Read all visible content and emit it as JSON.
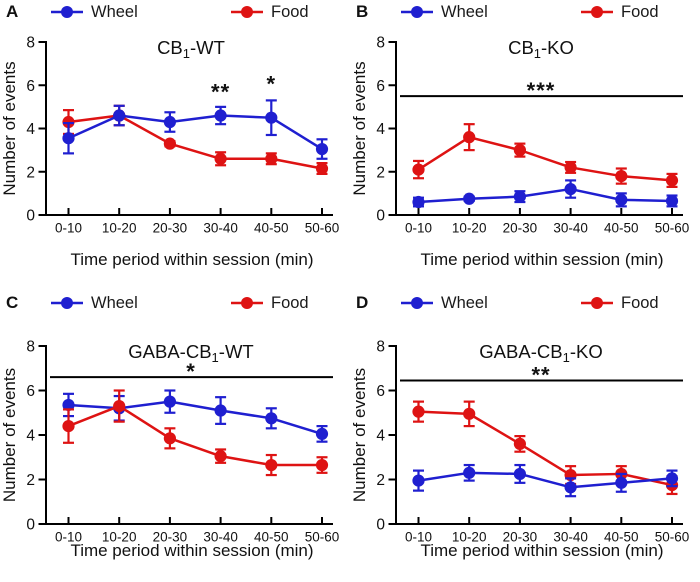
{
  "figure": {
    "background": "#ffffff",
    "wheel_color": "#1f1fd0",
    "food_color": "#de1313",
    "axis_color": "#000000",
    "text_color": "#111111"
  },
  "chart_data": [
    {
      "letter": "A",
      "type": "line",
      "title_pre": "CB",
      "title_sub": "1",
      "title_post": "-WT",
      "xlabel": "Time period within session (min)",
      "ylabel": "Number of events",
      "categories": [
        "0-10",
        "10-20",
        "20-30",
        "30-40",
        "40-50",
        "50-60"
      ],
      "ylim": [
        0,
        8
      ],
      "yticks": [
        0,
        2,
        4,
        6,
        8
      ],
      "legend_position": "top",
      "grid": false,
      "series": [
        {
          "name": "Wheel",
          "color": "#1f1fd0",
          "values": [
            3.55,
            4.6,
            4.3,
            4.6,
            4.5,
            3.05
          ],
          "errors": [
            0.7,
            0.45,
            0.45,
            0.4,
            0.8,
            0.45
          ]
        },
        {
          "name": "Food",
          "color": "#de1313",
          "values": [
            4.3,
            4.6,
            3.3,
            2.6,
            2.6,
            2.15
          ],
          "errors": [
            0.55,
            0.45,
            0.12,
            0.3,
            0.25,
            0.25
          ]
        }
      ],
      "draw_order": [
        1,
        0
      ],
      "annotations": [
        {
          "kind": "stars",
          "text": "**",
          "x_index": 3,
          "y_value": 5.35
        },
        {
          "kind": "stars",
          "text": "*",
          "x_index": 4,
          "y_value": 5.7
        }
      ]
    },
    {
      "letter": "B",
      "type": "line",
      "title_pre": "CB",
      "title_sub": "1",
      "title_post": "-KO",
      "xlabel": "Time period within session (min)",
      "ylabel": "Number of events",
      "categories": [
        "0-10",
        "10-20",
        "20-30",
        "30-40",
        "40-50",
        "50-60"
      ],
      "ylim": [
        0,
        8
      ],
      "yticks": [
        0,
        2,
        4,
        6,
        8
      ],
      "legend_position": "top",
      "grid": false,
      "series": [
        {
          "name": "Wheel",
          "color": "#1f1fd0",
          "values": [
            0.6,
            0.75,
            0.85,
            1.2,
            0.7,
            0.65
          ],
          "errors": [
            0.2,
            0.1,
            0.25,
            0.4,
            0.3,
            0.25
          ]
        },
        {
          "name": "Food",
          "color": "#de1313",
          "values": [
            2.1,
            3.6,
            3.0,
            2.2,
            1.8,
            1.6
          ],
          "errors": [
            0.4,
            0.6,
            0.3,
            0.25,
            0.35,
            0.3
          ]
        }
      ],
      "draw_order": [
        1,
        0
      ],
      "annotations": [
        {
          "kind": "sig_line",
          "text": "***",
          "y_value": 5.5
        }
      ]
    },
    {
      "letter": "C",
      "type": "line",
      "title_pre": "GABA-CB",
      "title_sub": "1",
      "title_post": "-WT",
      "xlabel": "Time period within session (min)",
      "ylabel": "Number of events",
      "categories": [
        "0-10",
        "10-20",
        "20-30",
        "30-40",
        "40-50",
        "50-60"
      ],
      "ylim": [
        0,
        8
      ],
      "yticks": [
        0,
        2,
        4,
        6,
        8
      ],
      "legend_position": "top",
      "grid": false,
      "series": [
        {
          "name": "Wheel",
          "color": "#1f1fd0",
          "values": [
            5.35,
            5.2,
            5.5,
            5.1,
            4.75,
            4.05
          ],
          "errors": [
            0.5,
            0.55,
            0.5,
            0.6,
            0.45,
            0.35
          ]
        },
        {
          "name": "Food",
          "color": "#de1313",
          "values": [
            4.4,
            5.3,
            3.85,
            3.05,
            2.65,
            2.65
          ],
          "errors": [
            0.75,
            0.7,
            0.45,
            0.3,
            0.45,
            0.35
          ]
        }
      ],
      "draw_order": [
        0,
        1
      ],
      "annotations": [
        {
          "kind": "sig_line",
          "text": "*",
          "y_value": 6.6
        }
      ]
    },
    {
      "letter": "D",
      "type": "line",
      "title_pre": "GABA-CB",
      "title_sub": "1",
      "title_post": "-KO",
      "xlabel": "Time period within session (min)",
      "ylabel": "Number of events",
      "categories": [
        "0-10",
        "10-20",
        "20-30",
        "30-40",
        "40-50",
        "50-60"
      ],
      "ylim": [
        0,
        8
      ],
      "yticks": [
        0,
        2,
        4,
        6,
        8
      ],
      "legend_position": "top",
      "grid": false,
      "series": [
        {
          "name": "Wheel",
          "color": "#1f1fd0",
          "values": [
            1.95,
            2.3,
            2.25,
            1.65,
            1.85,
            2.05
          ],
          "errors": [
            0.45,
            0.35,
            0.4,
            0.4,
            0.4,
            0.35
          ]
        },
        {
          "name": "Food",
          "color": "#de1313",
          "values": [
            5.05,
            4.95,
            3.6,
            2.2,
            2.25,
            1.75
          ],
          "errors": [
            0.45,
            0.55,
            0.35,
            0.4,
            0.35,
            0.4
          ]
        }
      ],
      "draw_order": [
        1,
        0
      ],
      "annotations": [
        {
          "kind": "sig_line",
          "text": "**",
          "y_value": 6.45
        }
      ]
    }
  ]
}
